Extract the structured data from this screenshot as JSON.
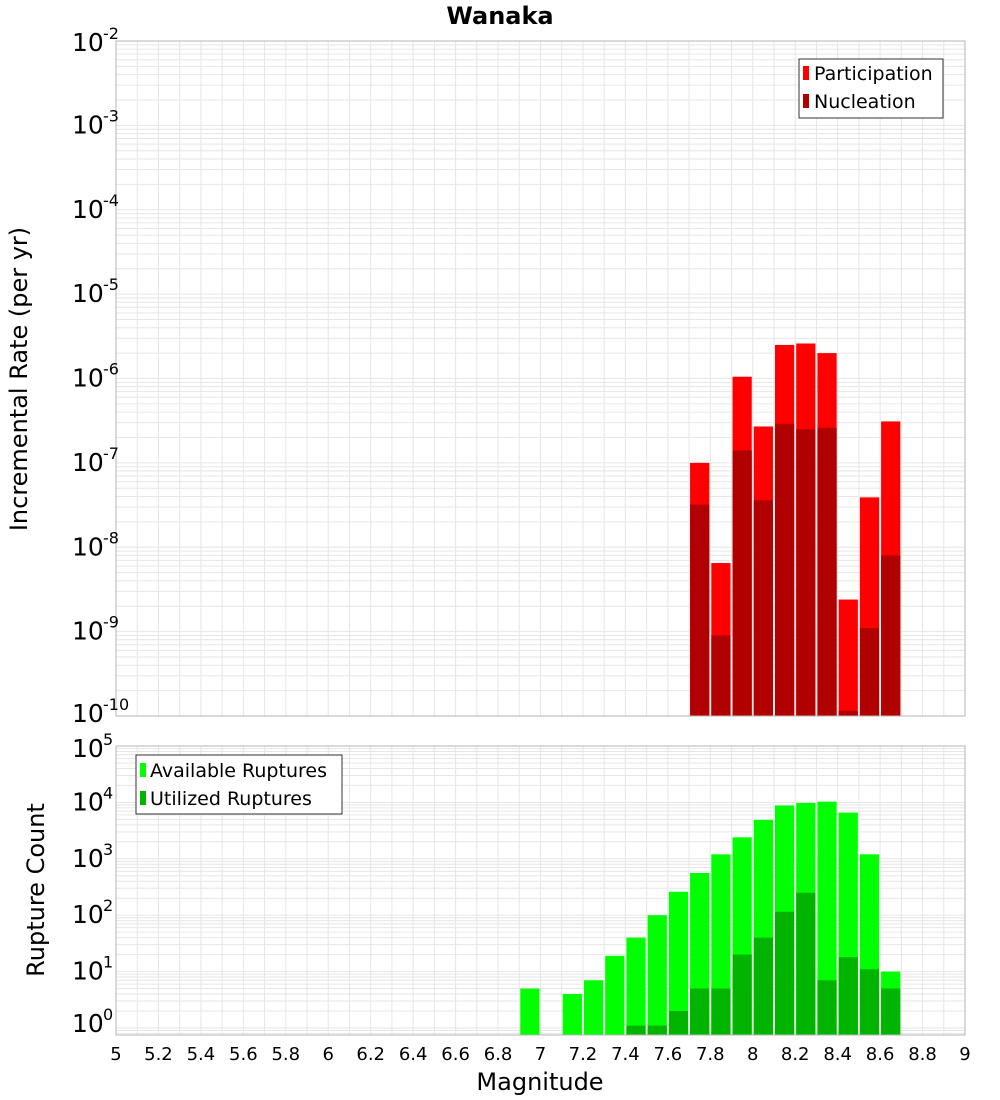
{
  "chart_data": [
    {
      "type": "bar",
      "title": "Wanaka",
      "xlabel": "",
      "ylabel": "Incremental Rate (per yr)",
      "xlim": [
        5,
        9
      ],
      "ylim": [
        1e-10,
        0.01
      ],
      "yscale": "log",
      "grid": true,
      "legend_position": "top-right",
      "bin_centers": [
        7.75,
        7.85,
        7.95,
        8.05,
        8.15,
        8.25,
        8.35,
        8.45,
        8.55,
        8.65
      ],
      "series": [
        {
          "name": "Participation",
          "color": "#ff0000",
          "values": [
            1e-07,
            6.5e-09,
            1.05e-06,
            2.7e-07,
            2.5e-06,
            2.6e-06,
            2e-06,
            2.4e-09,
            3.9e-08,
            3.1e-07
          ]
        },
        {
          "name": "Nucleation",
          "color": "#b00000",
          "values": [
            3.2e-08,
            9e-10,
            1.4e-07,
            3.6e-08,
            2.9e-07,
            2.5e-07,
            2.6e-07,
            1.15e-10,
            1.1e-09,
            8e-09
          ]
        }
      ],
      "ytick_exponents": [
        "-10",
        "-9",
        "-8",
        "-7",
        "-6",
        "-5",
        "-4",
        "-3",
        "-2"
      ]
    },
    {
      "type": "bar",
      "title": "",
      "xlabel": "Magnitude",
      "ylabel": "Rupture Count",
      "xlim": [
        5,
        9
      ],
      "ylim": [
        0.75,
        100000
      ],
      "yscale": "log",
      "grid": true,
      "legend_position": "top-left",
      "bin_centers": [
        6.95,
        7.05,
        7.15,
        7.25,
        7.35,
        7.45,
        7.55,
        7.65,
        7.75,
        7.85,
        7.95,
        8.05,
        8.15,
        8.25,
        8.35,
        8.45,
        8.55,
        8.65
      ],
      "series": [
        {
          "name": "Available Ruptures",
          "color": "#00ff00",
          "values": [
            5,
            0,
            4,
            7,
            19,
            40,
            100,
            260,
            560,
            1200,
            2400,
            4900,
            8800,
            9800,
            10300,
            6600,
            1200,
            10
          ]
        },
        {
          "name": "Utilized Ruptures",
          "color": "#00b400",
          "values": [
            0,
            0,
            0,
            0,
            0,
            1.1,
            1.1,
            2,
            5,
            5,
            20,
            40,
            115,
            250,
            7,
            18,
            11,
            5
          ]
        }
      ],
      "ytick_exponents": [
        "0",
        "1",
        "2",
        "3",
        "4",
        "5"
      ]
    }
  ],
  "x_tick_labels": [
    "5",
    "5.2",
    "5.4",
    "5.6",
    "5.8",
    "6",
    "6.2",
    "6.4",
    "6.6",
    "6.8",
    "7",
    "7.2",
    "7.4",
    "7.6",
    "7.8",
    "8",
    "8.2",
    "8.4",
    "8.6",
    "8.8",
    "9"
  ],
  "y_tick_base": "10",
  "colors": {
    "participation": "#ff0000",
    "nucleation": "#b00000",
    "available": "#00ff00",
    "utilized": "#00b400",
    "grid": "#e6e6e6",
    "frame": "#b4b4b4"
  }
}
